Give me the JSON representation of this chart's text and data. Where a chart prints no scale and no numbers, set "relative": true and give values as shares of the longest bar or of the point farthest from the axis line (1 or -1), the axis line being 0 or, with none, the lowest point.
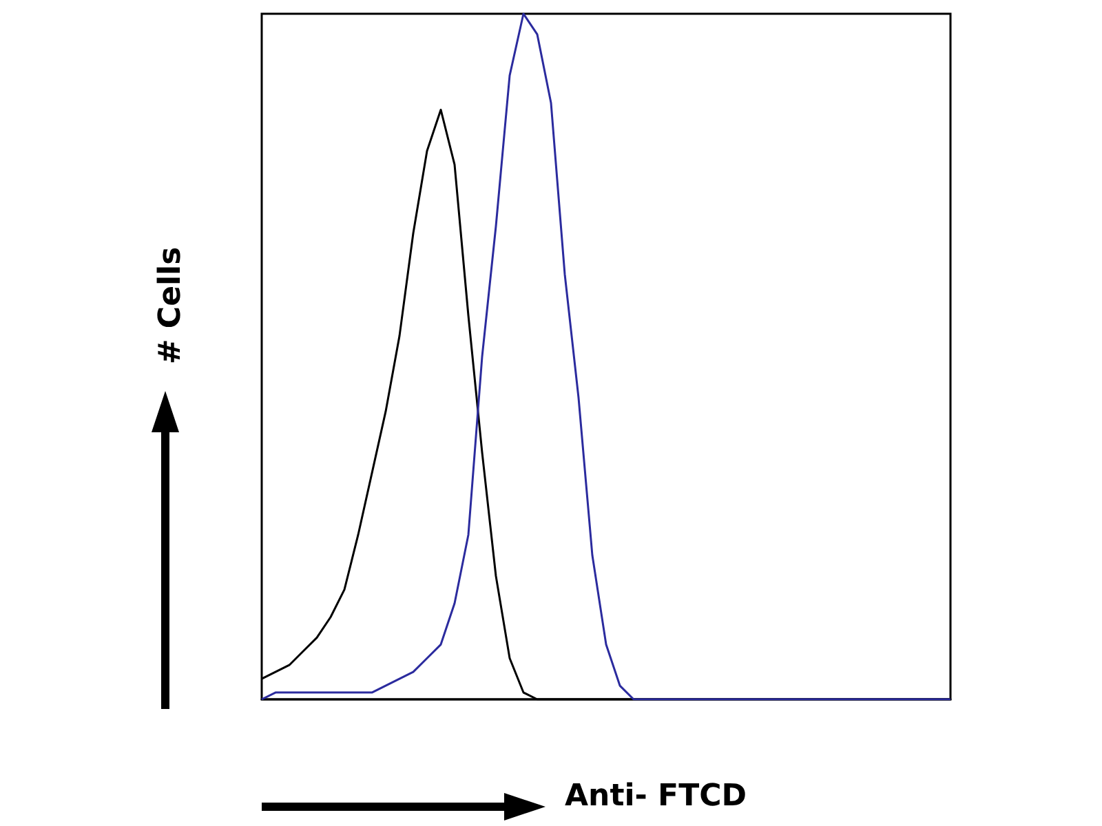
{
  "chart_data": {
    "type": "line",
    "xlabel": "Anti- FTCD",
    "ylabel": "# Cells",
    "relative": true,
    "categories": [
      null,
      null,
      null,
      null,
      null,
      null,
      null,
      null,
      null,
      null,
      null,
      null,
      null,
      null,
      null,
      null,
      null,
      null,
      null,
      null,
      null,
      null,
      null,
      null,
      null,
      null,
      null,
      null,
      null,
      null,
      null,
      null,
      null,
      null,
      null,
      null,
      null,
      null,
      null,
      null,
      null,
      null,
      null,
      null,
      null,
      null,
      null,
      null,
      null,
      null,
      null
    ],
    "series": [
      {
        "color": "#000000",
        "values": [
          0.03,
          0.04,
          0.05,
          0.07,
          0.09,
          0.12,
          0.16,
          0.24,
          0.33,
          0.42,
          0.53,
          0.68,
          0.8,
          0.86,
          0.78,
          0.56,
          0.36,
          0.18,
          0.06,
          0.01,
          0,
          0,
          0,
          0,
          0,
          0,
          0,
          0,
          0,
          0,
          0,
          0,
          0,
          0,
          0,
          0,
          0,
          0,
          0,
          0,
          0,
          0,
          0,
          0,
          0,
          0,
          0,
          0,
          0,
          0,
          0
        ]
      },
      {
        "color": "#2b2b9e",
        "values": [
          0,
          0.01,
          0.01,
          0.01,
          0.01,
          0.01,
          0.01,
          0.01,
          0.01,
          0.02,
          0.03,
          0.04,
          0.06,
          0.08,
          0.14,
          0.24,
          0.5,
          0.69,
          0.91,
          1,
          0.97,
          0.87,
          0.62,
          0.44,
          0.21,
          0.08,
          0.02,
          0,
          0,
          0,
          0,
          0,
          0,
          0,
          0,
          0,
          0,
          0,
          0,
          0,
          0,
          0,
          0,
          0,
          0,
          0,
          0,
          0,
          0,
          0,
          0
        ]
      }
    ],
    "grid": false,
    "marker": "none",
    "line_style": "solid"
  }
}
